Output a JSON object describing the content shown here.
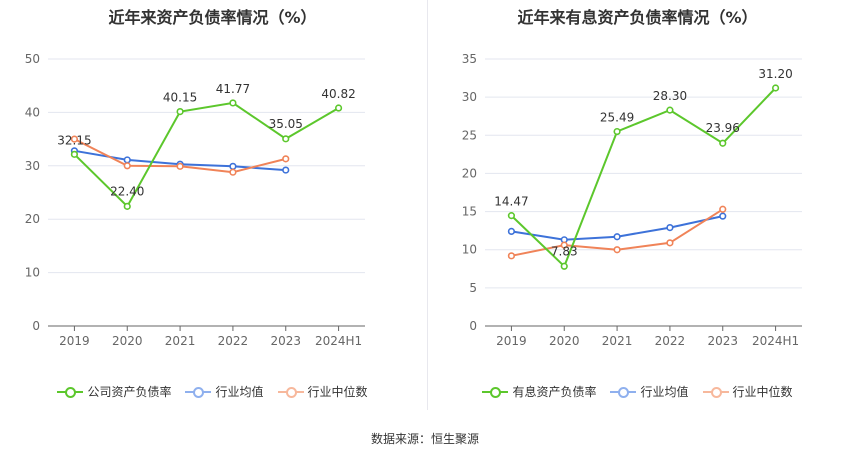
{
  "footer": {
    "source": "数据来源：恒生聚源"
  },
  "chart_data": [
    {
      "type": "line",
      "title": "近年来资产负债率情况（%）",
      "categories": [
        "2019",
        "2020",
        "2021",
        "2022",
        "2023",
        "2024H1"
      ],
      "ylim": [
        0,
        50
      ],
      "yticks": [
        0,
        10,
        20,
        30,
        40,
        50
      ],
      "grid": true,
      "legend_position": "bottom",
      "series": [
        {
          "name": "公司资产负债率",
          "color": "#5cc72c",
          "labeled": true,
          "values": [
            32.15,
            22.4,
            40.15,
            41.77,
            35.05,
            40.82
          ],
          "labels": [
            "32.15",
            "22.40",
            "40.15",
            "41.77",
            "35.05",
            "40.82"
          ]
        },
        {
          "name": "行业均值",
          "color": "#3d72d9",
          "labeled": false,
          "values": [
            32.8,
            31.1,
            30.3,
            29.9,
            29.2,
            null
          ]
        },
        {
          "name": "行业中位数",
          "color": "#f08358",
          "labeled": false,
          "values": [
            35.0,
            30.0,
            29.9,
            28.8,
            31.3,
            null
          ]
        }
      ]
    },
    {
      "type": "line",
      "title": "近年来有息资产负债率情况（%）",
      "categories": [
        "2019",
        "2020",
        "2021",
        "2022",
        "2023",
        "2024H1"
      ],
      "ylim": [
        0,
        35
      ],
      "yticks": [
        0,
        5,
        10,
        15,
        20,
        25,
        30,
        35
      ],
      "grid": true,
      "legend_position": "bottom",
      "series": [
        {
          "name": "有息资产负债率",
          "color": "#5cc72c",
          "labeled": true,
          "values": [
            14.47,
            7.83,
            25.49,
            28.3,
            23.96,
            31.2
          ],
          "labels": [
            "14.47",
            "7.83",
            "25.49",
            "28.30",
            "23.96",
            "31.20"
          ]
        },
        {
          "name": "行业均值",
          "color": "#3d72d9",
          "labeled": false,
          "values": [
            12.4,
            11.3,
            11.7,
            12.9,
            14.4,
            null
          ]
        },
        {
          "name": "行业中位数",
          "color": "#f08358",
          "labeled": false,
          "values": [
            9.2,
            10.6,
            10.0,
            10.9,
            15.3,
            null
          ]
        }
      ]
    }
  ]
}
